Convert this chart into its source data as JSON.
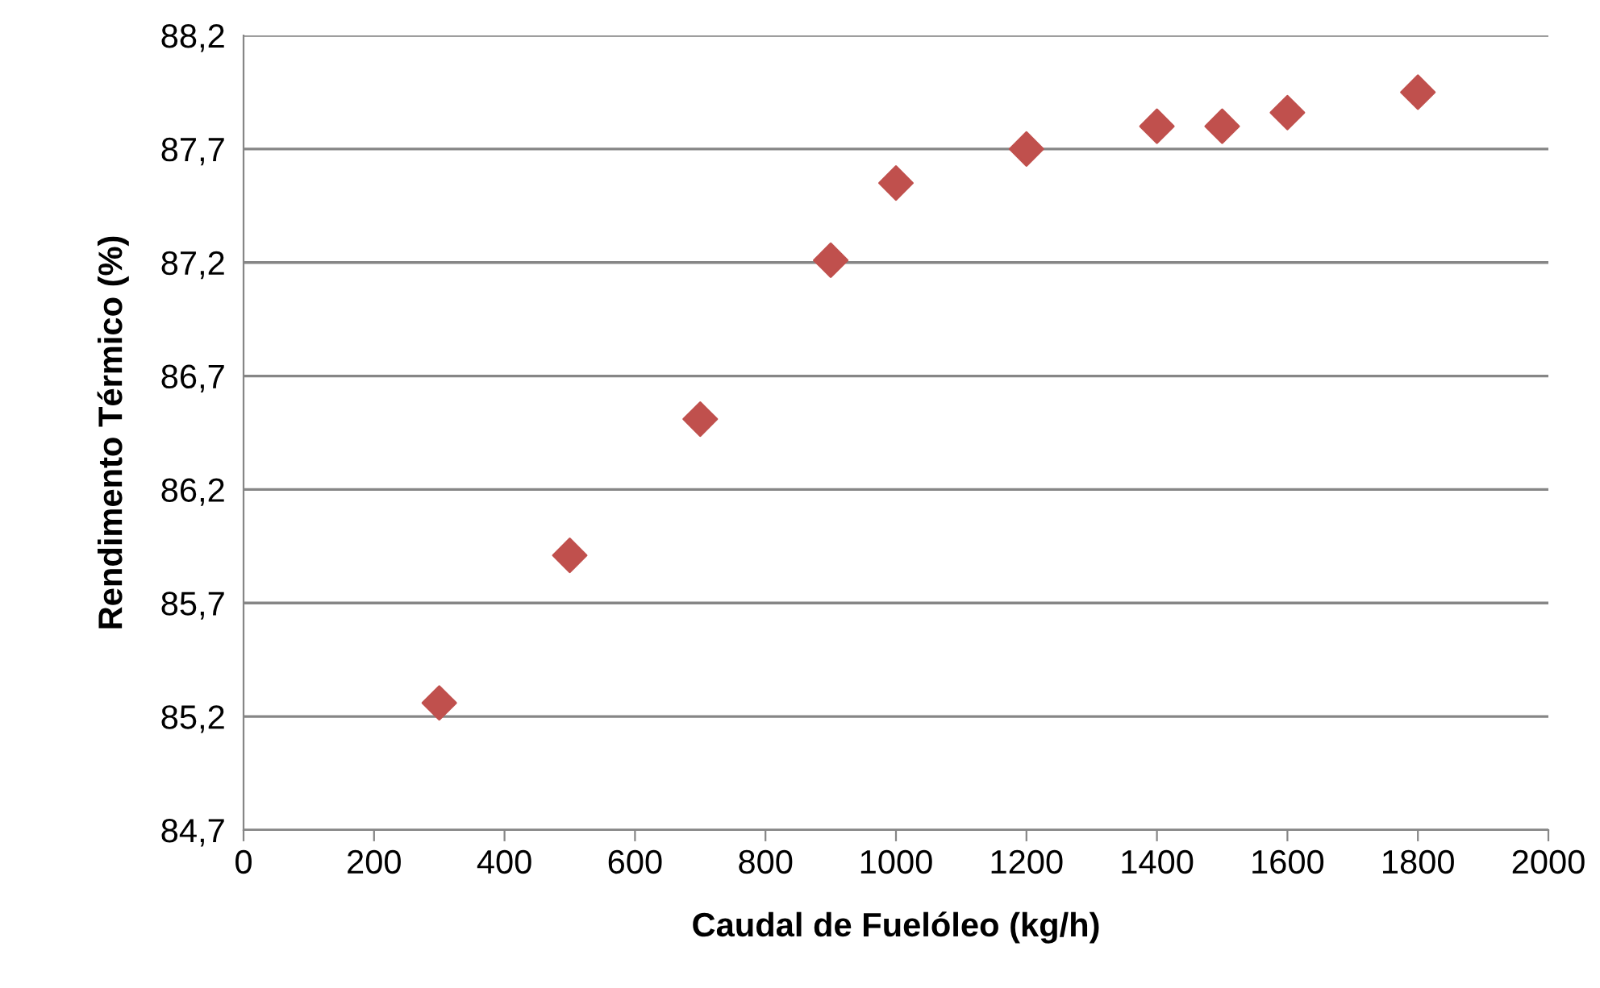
{
  "chart_data": {
    "type": "scatter",
    "xlabel": "Caudal de Fuelóleo (kg/h)",
    "ylabel": "Rendimento Térmico (%)",
    "x": [
      300,
      500,
      700,
      900,
      1000,
      1200,
      1400,
      1500,
      1600,
      1800
    ],
    "series": [
      {
        "color": "#c0504d",
        "values": [
          85.26,
          85.91,
          86.51,
          87.21,
          87.55,
          87.7,
          87.8,
          87.8,
          87.86,
          87.95
        ]
      }
    ],
    "xlim": [
      0,
      2000
    ],
    "xticks": [
      0,
      200,
      400,
      600,
      800,
      1000,
      1200,
      1400,
      1600,
      1800,
      2000
    ],
    "ylim": [
      84.7,
      88.2
    ],
    "yticks": [
      {
        "value": 84.7,
        "label": "84,7"
      },
      {
        "value": 85.2,
        "label": "85,2"
      },
      {
        "value": 85.7,
        "label": "85,7"
      },
      {
        "value": 86.2,
        "label": "86,2"
      },
      {
        "value": 86.7,
        "label": "86,7"
      },
      {
        "value": 87.2,
        "label": "87,2"
      },
      {
        "value": 87.7,
        "label": "87,7"
      },
      {
        "value": 88.2,
        "label": "88,2"
      }
    ],
    "grid": "y",
    "marker": "diamond"
  }
}
